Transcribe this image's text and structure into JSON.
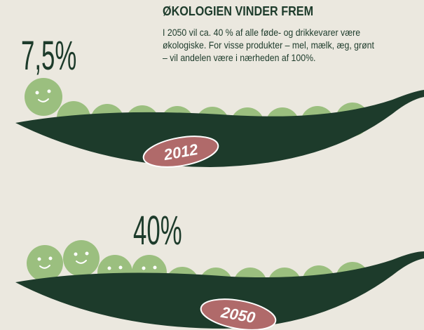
{
  "header": {
    "title": "ØKOLOGIEN VINDER FREM",
    "lines": [
      "I 2050 vil ca. 40 % af alle føde- og drikkevarer være",
      "økologiske. For visse produkter – mel, mælk, æg, grønt",
      "– vil andelen være i nærheden af 100%."
    ]
  },
  "panels": [
    {
      "share": "7,5%",
      "year": "2012"
    },
    {
      "share": "40%",
      "year": "2050"
    }
  ]
}
